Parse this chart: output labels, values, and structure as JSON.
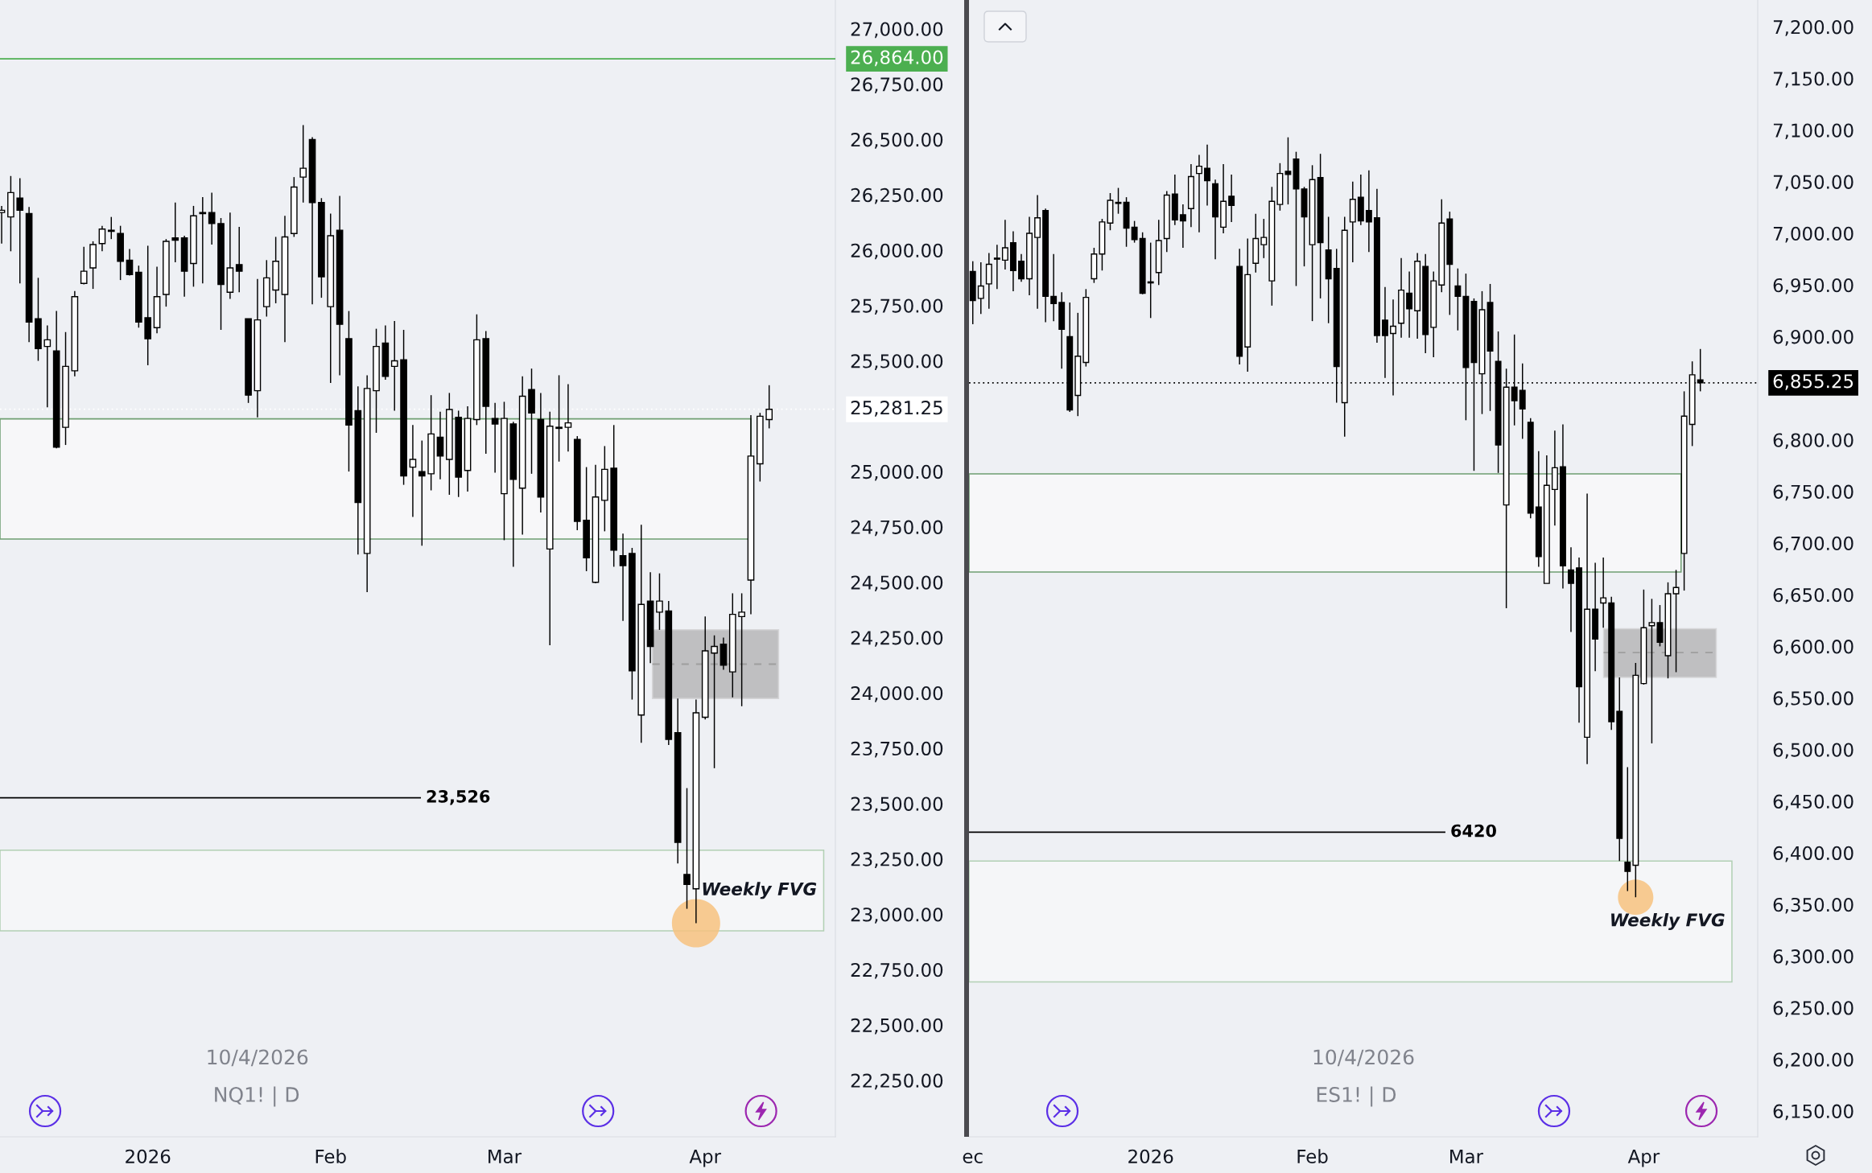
{
  "chart_data": [
    {
      "type": "candlestick",
      "categories": [
        null,
        null,
        null,
        null,
        null,
        null,
        null,
        null,
        null,
        null,
        null,
        null,
        null,
        null,
        null,
        null,
        "2026",
        null,
        null,
        null,
        null,
        null,
        null,
        null,
        null,
        null,
        null,
        null,
        null,
        null,
        null,
        null,
        null,
        null,
        null,
        null,
        "Feb",
        null,
        null,
        null,
        null,
        null,
        null,
        null,
        null,
        null,
        null,
        null,
        null,
        null,
        null,
        null,
        null,
        null,
        null,
        "Mar",
        null,
        null,
        null,
        null,
        null,
        null,
        null,
        null,
        null,
        null,
        null,
        null,
        null,
        null,
        null,
        null,
        null,
        null,
        null,
        null,
        null,
        "Apr",
        null,
        null,
        null,
        null,
        null,
        null,
        null
      ],
      "ohlc": [
        [
          26170,
          26200,
          26030,
          26180
        ],
        [
          26150,
          26335,
          25995,
          26260
        ],
        [
          26235,
          26325,
          25850,
          26180
        ],
        [
          26165,
          26195,
          25585,
          25675
        ],
        [
          25690,
          25875,
          25500,
          25555
        ],
        [
          25565,
          25660,
          25290,
          25595
        ],
        [
          25545,
          25725,
          25105,
          25110
        ],
        [
          25200,
          25630,
          25120,
          25475
        ],
        [
          25455,
          25815,
          25430,
          25790
        ],
        [
          25850,
          26015,
          25845,
          25905
        ],
        [
          25920,
          26040,
          25825,
          26025
        ],
        [
          26030,
          26110,
          25995,
          26095
        ],
        [
          26085,
          26150,
          26050,
          26090
        ],
        [
          26075,
          26110,
          25865,
          25950
        ],
        [
          25955,
          26005,
          25885,
          25890
        ],
        [
          25900,
          25930,
          25650,
          25675
        ],
        [
          25695,
          26020,
          25480,
          25600
        ],
        [
          25650,
          25925,
          25625,
          25790
        ],
        [
          25800,
          26050,
          25745,
          26040
        ],
        [
          26055,
          26215,
          25945,
          26045
        ],
        [
          26055,
          26065,
          25790,
          25905
        ],
        [
          25940,
          26200,
          25835,
          26155
        ],
        [
          26165,
          26240,
          25850,
          26170
        ],
        [
          26170,
          26260,
          26025,
          26120
        ],
        [
          26120,
          26145,
          25640,
          25845
        ],
        [
          25810,
          26170,
          25780,
          25920
        ],
        [
          25935,
          26105,
          25810,
          25905
        ],
        [
          25690,
          25690,
          25310,
          25345
        ],
        [
          25365,
          25870,
          25245,
          25685
        ],
        [
          25745,
          25955,
          25700,
          25875
        ],
        [
          25820,
          26060,
          25760,
          25950
        ],
        [
          25800,
          26155,
          25585,
          26060
        ],
        [
          26075,
          26330,
          26060,
          26285
        ],
        [
          26330,
          26565,
          26215,
          26370
        ],
        [
          26500,
          26510,
          25755,
          26215
        ],
        [
          26215,
          26235,
          25785,
          25880
        ],
        [
          25745,
          26165,
          25400,
          26065
        ],
        [
          26090,
          26245,
          25435,
          25665
        ],
        [
          25600,
          25725,
          25000,
          25210
        ],
        [
          25275,
          25385,
          24625,
          24860
        ],
        [
          24630,
          25435,
          24455,
          25375
        ],
        [
          25365,
          25645,
          25175,
          25565
        ],
        [
          25580,
          25660,
          25415,
          25430
        ],
        [
          25475,
          25680,
          25275,
          25500
        ],
        [
          25505,
          25640,
          24940,
          24980
        ],
        [
          25020,
          25210,
          24795,
          25055
        ],
        [
          25000,
          25140,
          24665,
          24980
        ],
        [
          24990,
          25345,
          24915,
          25170
        ],
        [
          25155,
          25270,
          24965,
          25070
        ],
        [
          25055,
          25355,
          24895,
          25280
        ],
        [
          25245,
          25275,
          24885,
          24975
        ],
        [
          25005,
          25295,
          24910,
          25240
        ],
        [
          25235,
          25710,
          25210,
          25595
        ],
        [
          25600,
          25635,
          25080,
          25295
        ],
        [
          25240,
          25310,
          24995,
          25215
        ],
        [
          24900,
          25315,
          24690,
          25240
        ],
        [
          25215,
          25225,
          24570,
          24965
        ],
        [
          24925,
          25430,
          24715,
          25340
        ],
        [
          25370,
          25465,
          24990,
          25265
        ],
        [
          25235,
          25355,
          24815,
          24885
        ],
        [
          24650,
          25270,
          24215,
          25205
        ],
        [
          25200,
          25435,
          25045,
          25195
        ],
        [
          25200,
          25395,
          25090,
          25220
        ],
        [
          25145,
          25160,
          24735,
          24775
        ],
        [
          24780,
          25020,
          24550,
          24610
        ],
        [
          24500,
          25030,
          24495,
          24885
        ],
        [
          24870,
          25115,
          24730,
          25010
        ],
        [
          25015,
          25210,
          24570,
          24645
        ],
        [
          24620,
          24720,
          24325,
          24575
        ],
        [
          24630,
          24655,
          23970,
          24100
        ],
        [
          23900,
          24760,
          23775,
          24400
        ],
        [
          24415,
          24545,
          24135,
          24210
        ],
        [
          24365,
          24540,
          24285,
          24415
        ],
        [
          24370,
          24415,
          23765,
          23790
        ],
        [
          23820,
          23975,
          23230,
          23325
        ],
        [
          23180,
          23570,
          23025,
          23135
        ],
        [
          23115,
          23970,
          22960,
          23910
        ],
        [
          23890,
          24345,
          23880,
          24190
        ],
        [
          24180,
          24260,
          23660,
          24210
        ],
        [
          24220,
          24250,
          24105,
          24125
        ],
        [
          24095,
          24450,
          23980,
          24355
        ],
        [
          24345,
          24450,
          23940,
          24365
        ],
        [
          24510,
          25255,
          24355,
          25070
        ],
        [
          25035,
          25265,
          24955,
          25250
        ],
        [
          25235,
          25390,
          25195,
          25281.25
        ]
      ],
      "color": "#000000",
      "ylim": [
        21995,
        27130
      ],
      "yticks": [
        {
          "value": 27000,
          "label": "27,000.00"
        },
        {
          "value": 26750,
          "label": "26,750.00"
        },
        {
          "value": 26500,
          "label": "26,500.00"
        },
        {
          "value": 26250,
          "label": "26,250.00"
        },
        {
          "value": 26000,
          "label": "26,000.00"
        },
        {
          "value": 25750,
          "label": "25,750.00"
        },
        {
          "value": 25500,
          "label": "25,500.00"
        },
        {
          "value": 25000,
          "label": "25,000.00"
        },
        {
          "value": 24750,
          "label": "24,750.00"
        },
        {
          "value": 24500,
          "label": "24,500.00"
        },
        {
          "value": 24250,
          "label": "24,250.00"
        },
        {
          "value": 24000,
          "label": "24,000.00"
        },
        {
          "value": 23750,
          "label": "23,750.00"
        },
        {
          "value": 23500,
          "label": "23,500.00"
        },
        {
          "value": 23250,
          "label": "23,250.00"
        },
        {
          "value": 23000,
          "label": "23,000.00"
        },
        {
          "value": 22750,
          "label": "22,750.00"
        },
        {
          "value": 22500,
          "label": "22,500.00"
        },
        {
          "value": 22250,
          "label": "22,250.00"
        }
      ],
      "ref_lines": [
        {
          "axis": "y",
          "value": 26864,
          "label": "26,864.00",
          "color": "#4caf50"
        },
        {
          "axis": "y",
          "value": 25281.25,
          "label": "25,281.25",
          "color": "#ffffff",
          "line_style": "dotted"
        },
        {
          "axis": "y",
          "value": 23526,
          "label": "23,526",
          "color": "#000000"
        },
        {
          "axis": "y",
          "value": 24130,
          "color": "#9e9e9e",
          "line_style": "dashed"
        }
      ],
      "bands": [
        {
          "axis": "y",
          "from": 24695,
          "to": 25238,
          "color": "#f7f7f9"
        },
        {
          "axis": "y",
          "from": 23975,
          "to": 24285,
          "color": "#bfbfc1"
        },
        {
          "axis": "y",
          "from": 22925,
          "to": 23290,
          "label": "Weekly FVG",
          "color": "#f5f6f8"
        }
      ],
      "annotations": [
        "10/4/2026",
        "NQ1! | D"
      ]
    },
    {
      "type": "candlestick",
      "categories": [
        "ec",
        null,
        null,
        null,
        null,
        null,
        null,
        null,
        null,
        null,
        null,
        null,
        null,
        null,
        null,
        null,
        null,
        null,
        null,
        null,
        null,
        null,
        "2026",
        null,
        null,
        null,
        null,
        null,
        null,
        null,
        null,
        null,
        null,
        null,
        null,
        null,
        null,
        null,
        null,
        null,
        null,
        null,
        "Feb",
        null,
        null,
        null,
        null,
        null,
        null,
        null,
        null,
        null,
        null,
        null,
        null,
        null,
        null,
        null,
        null,
        null,
        null,
        "Mar",
        null,
        null,
        null,
        null,
        null,
        null,
        null,
        null,
        null,
        null,
        null,
        null,
        null,
        null,
        null,
        null,
        null,
        null,
        null,
        null,
        null,
        "Apr",
        null,
        null,
        null,
        null,
        null,
        null,
        null
      ],
      "ohlc": [
        [
          6963,
          6973,
          6912,
          6935
        ],
        [
          6937,
          6972,
          6922,
          6949
        ],
        [
          6951,
          6981,
          6927,
          6970
        ],
        [
          6975,
          6989,
          6946,
          6976
        ],
        [
          6974,
          7013,
          6965,
          6986
        ],
        [
          6991,
          7002,
          6944,
          6964
        ],
        [
          6973,
          6980,
          6953,
          6956
        ],
        [
          6956,
          7016,
          6940,
          7000
        ],
        [
          6996,
          7037,
          6927,
          7015
        ],
        [
          7022,
          7024,
          6914,
          6939
        ],
        [
          6939,
          6980,
          6915,
          6932
        ],
        [
          6933,
          6943,
          6869,
          6907
        ],
        [
          6900,
          6933,
          6827,
          6829
        ],
        [
          6843,
          6923,
          6823,
          6881
        ],
        [
          6875,
          6946,
          6871,
          6938
        ],
        [
          6956,
          6986,
          6952,
          6980
        ],
        [
          6980,
          7014,
          6964,
          7011
        ],
        [
          7010,
          7039,
          7003,
          7032
        ],
        [
          7029,
          7044,
          7019,
          7030
        ],
        [
          7030,
          7035,
          6987,
          7005
        ],
        [
          7006,
          7012,
          6991,
          6994
        ],
        [
          6995,
          7001,
          6941,
          6942
        ],
        [
          6953,
          6991,
          6918,
          6952
        ],
        [
          6962,
          7013,
          6950,
          6993
        ],
        [
          6995,
          7041,
          6982,
          7037
        ],
        [
          7038,
          7057,
          7008,
          7013
        ],
        [
          7018,
          7028,
          6986,
          7012
        ],
        [
          7024,
          7067,
          7006,
          7055
        ],
        [
          7058,
          7076,
          7001,
          7065
        ],
        [
          7063,
          7086,
          7027,
          7051
        ],
        [
          7048,
          7052,
          6975,
          7016
        ],
        [
          7006,
          7067,
          7000,
          7031
        ],
        [
          7036,
          7057,
          7011,
          7027
        ],
        [
          6968,
          6985,
          6873,
          6881
        ],
        [
          6890,
          6995,
          6866,
          6960
        ],
        [
          6971,
          7019,
          6962,
          6995
        ],
        [
          6989,
          7014,
          6976,
          6996
        ],
        [
          6954,
          7045,
          6930,
          7031
        ],
        [
          7028,
          7068,
          7022,
          7058
        ],
        [
          7060,
          7093,
          7028,
          7057
        ],
        [
          7072,
          7079,
          6949,
          7043
        ],
        [
          7043,
          7045,
          6968,
          7016
        ],
        [
          6989,
          7066,
          6915,
          7052
        ],
        [
          7054,
          7077,
          6937,
          6991
        ],
        [
          6984,
          7016,
          6913,
          6956
        ],
        [
          6966,
          6985,
          6836,
          6871
        ],
        [
          6836,
          7016,
          6803,
          7003
        ],
        [
          7011,
          7050,
          6972,
          7033
        ],
        [
          7035,
          7057,
          7008,
          7012
        ],
        [
          7022,
          7061,
          6982,
          7011
        ],
        [
          7015,
          7043,
          6894,
          6901
        ],
        [
          6916,
          6948,
          6860,
          6901
        ],
        [
          6903,
          6936,
          6843,
          6910
        ],
        [
          6913,
          6976,
          6899,
          6945
        ],
        [
          6942,
          6963,
          6899,
          6927
        ],
        [
          6925,
          6981,
          6898,
          6973
        ],
        [
          6968,
          6980,
          6884,
          6902
        ],
        [
          6909,
          6963,
          6880,
          6954
        ],
        [
          6950,
          7033,
          6943,
          7010
        ],
        [
          7014,
          7021,
          6921,
          6970
        ],
        [
          6949,
          6966,
          6906,
          6939
        ],
        [
          6939,
          6961,
          6819,
          6870
        ],
        [
          6934,
          6937,
          6770,
          6875
        ],
        [
          6864,
          6944,
          6825,
          6926
        ],
        [
          6933,
          6951,
          6828,
          6886
        ],
        [
          6876,
          6905,
          6768,
          6795
        ],
        [
          6737,
          6869,
          6637,
          6851
        ],
        [
          6851,
          6902,
          6814,
          6838
        ],
        [
          6848,
          6874,
          6801,
          6830
        ],
        [
          6817,
          6821,
          6724,
          6729
        ],
        [
          6735,
          6789,
          6677,
          6687
        ],
        [
          6661,
          6785,
          6661,
          6756
        ],
        [
          6752,
          6809,
          6717,
          6773
        ],
        [
          6774,
          6815,
          6656,
          6678
        ],
        [
          6674,
          6696,
          6614,
          6661
        ],
        [
          6676,
          6686,
          6526,
          6561
        ],
        [
          6512,
          6748,
          6486,
          6636
        ],
        [
          6636,
          6681,
          6576,
          6607
        ],
        [
          6642,
          6686,
          6618,
          6647
        ],
        [
          6642,
          6648,
          6519,
          6527
        ],
        [
          6537,
          6570,
          6392,
          6414
        ],
        [
          6391,
          6483,
          6363,
          6382
        ],
        [
          6388,
          6584,
          6357,
          6572
        ],
        [
          6564,
          6655,
          6563,
          6618
        ],
        [
          6620,
          6646,
          6506,
          6623
        ],
        [
          6623,
          6640,
          6600,
          6604
        ],
        [
          6591,
          6662,
          6569,
          6651
        ],
        [
          6651,
          6674,
          6575,
          6657
        ],
        [
          6690,
          6847,
          6654,
          6823
        ],
        [
          6815,
          6876,
          6794,
          6863
        ],
        [
          6858,
          6888,
          6847,
          6855.25
        ]
      ],
      "color": "#000000",
      "ylim": [
        6125,
        7226
      ],
      "yticks": [
        {
          "value": 7200,
          "label": "7,200.00"
        },
        {
          "value": 7150,
          "label": "7,150.00"
        },
        {
          "value": 7100,
          "label": "7,100.00"
        },
        {
          "value": 7050,
          "label": "7,050.00"
        },
        {
          "value": 7000,
          "label": "7,000.00"
        },
        {
          "value": 6950,
          "label": "6,950.00"
        },
        {
          "value": 6900,
          "label": "6,900.00"
        },
        {
          "value": 6800,
          "label": "6,800.00"
        },
        {
          "value": 6750,
          "label": "6,750.00"
        },
        {
          "value": 6700,
          "label": "6,700.00"
        },
        {
          "value": 6650,
          "label": "6,650.00"
        },
        {
          "value": 6600,
          "label": "6,600.00"
        },
        {
          "value": 6550,
          "label": "6,550.00"
        },
        {
          "value": 6500,
          "label": "6,500.00"
        },
        {
          "value": 6450,
          "label": "6,450.00"
        },
        {
          "value": 6400,
          "label": "6,400.00"
        },
        {
          "value": 6350,
          "label": "6,350.00"
        },
        {
          "value": 6300,
          "label": "6,300.00"
        },
        {
          "value": 6250,
          "label": "6,250.00"
        },
        {
          "value": 6200,
          "label": "6,200.00"
        },
        {
          "value": 6150,
          "label": "6,150.00"
        }
      ],
      "ref_lines": [
        {
          "axis": "y",
          "value": 6855.25,
          "label": "6,855.25",
          "color": "#000000",
          "line_style": "dotted"
        },
        {
          "axis": "y",
          "value": 6420,
          "label": "6420",
          "color": "#000000"
        },
        {
          "axis": "y",
          "value": 6594,
          "color": "#9e9e9e",
          "line_style": "dashed"
        }
      ],
      "bands": [
        {
          "axis": "y",
          "from": 6672,
          "to": 6767,
          "color": "#f7f7f9"
        },
        {
          "axis": "y",
          "from": 6570,
          "to": 6617,
          "color": "#bfbfc1"
        },
        {
          "axis": "y",
          "from": 6275,
          "to": 6392,
          "label": "Weekly FVG",
          "color": "#f5f6f8"
        }
      ],
      "annotations": [
        "10/4/2026",
        "ES1! | D"
      ]
    }
  ]
}
